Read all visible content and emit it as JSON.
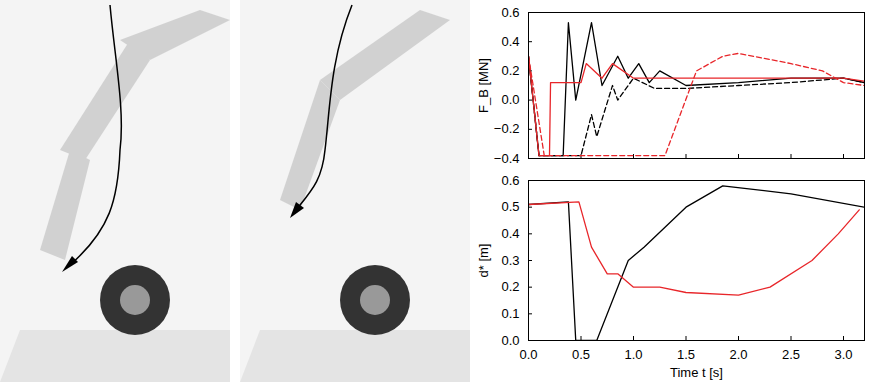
{
  "chart_data": [
    {
      "type": "line",
      "ylabel": "F_B [MN]",
      "xlim": [
        0,
        3.2
      ],
      "xticks": [
        0,
        0.5,
        1,
        1.5,
        2,
        2.5,
        3
      ],
      "ylim": [
        -0.4,
        0.6
      ],
      "yticks": [
        {
          "value": -0.4,
          "label": "−0.4"
        },
        {
          "value": -0.2,
          "label": "−0.2"
        },
        {
          "value": 0,
          "label": "0.0"
        },
        0.2,
        0.4,
        0.6
      ],
      "tick_labels": "y",
      "grid": false,
      "series": [
        {
          "color": "#000000",
          "line_style": "solid",
          "x": [
            0,
            0.1,
            0.33,
            0.38,
            0.45,
            0.6,
            0.7,
            0.85,
            0.95,
            1.05,
            1.15,
            1.25,
            1.5,
            2.0,
            2.5,
            3.0,
            3.2
          ],
          "values": [
            0.3,
            -0.38,
            -0.38,
            0.53,
            0.0,
            0.53,
            0.1,
            0.3,
            0.15,
            0.25,
            0.12,
            0.2,
            0.1,
            0.12,
            0.15,
            0.15,
            0.12
          ]
        },
        {
          "color": "#000000",
          "line_style": "dashed",
          "x": [
            0,
            0.1,
            0.5,
            0.6,
            0.65,
            0.8,
            0.85,
            1.0,
            1.2,
            1.5,
            2.0,
            2.5,
            3.0,
            3.2
          ],
          "values": [
            0.3,
            -0.38,
            -0.38,
            -0.1,
            -0.25,
            0.1,
            0.0,
            0.15,
            0.08,
            0.08,
            0.1,
            0.12,
            0.15,
            0.12
          ]
        },
        {
          "color": "#e8262a",
          "line_style": "solid",
          "x": [
            0,
            0.1,
            0.2,
            0.21,
            0.5,
            0.55,
            0.7,
            0.8,
            1.0,
            1.5,
            2.0,
            2.5,
            3.0,
            3.2
          ],
          "values": [
            0.3,
            -0.38,
            -0.38,
            0.12,
            0.12,
            0.25,
            0.15,
            0.25,
            0.15,
            0.15,
            0.15,
            0.15,
            0.15,
            0.13
          ]
        },
        {
          "color": "#e8262a",
          "line_style": "dashed",
          "x": [
            0,
            0.15,
            1.3,
            1.6,
            1.85,
            2.0,
            2.5,
            2.8,
            3.0,
            3.2
          ],
          "values": [
            0.3,
            -0.38,
            -0.38,
            0.2,
            0.3,
            0.32,
            0.25,
            0.2,
            0.12,
            0.1
          ]
        }
      ]
    },
    {
      "type": "line",
      "xlabel": "Time t [s]",
      "ylabel": "d* [m]",
      "xlim": [
        0,
        3.2
      ],
      "xticks": [
        {
          "value": 0,
          "label": "0.0"
        },
        0.5,
        {
          "value": 1,
          "label": "1.0"
        },
        1.5,
        {
          "value": 2,
          "label": "2.0"
        },
        2.5,
        {
          "value": 3,
          "label": "3.0"
        }
      ],
      "ylim": [
        0,
        0.6
      ],
      "yticks": [
        {
          "value": 0,
          "label": "0.0"
        },
        0.1,
        0.2,
        0.3,
        0.4,
        0.5,
        0.6
      ],
      "grid": false,
      "series": [
        {
          "color": "#000000",
          "line_style": "solid",
          "x": [
            0,
            0.38,
            0.45,
            0.65,
            0.95,
            1.1,
            1.5,
            1.85,
            2.5,
            3.2
          ],
          "values": [
            0.51,
            0.52,
            0.0,
            0.0,
            0.3,
            0.35,
            0.5,
            0.58,
            0.55,
            0.5
          ]
        },
        {
          "color": "#e8262a",
          "line_style": "solid",
          "x": [
            0,
            0.48,
            0.6,
            0.75,
            0.85,
            1.0,
            1.25,
            1.5,
            2.0,
            2.3,
            2.7,
            2.95,
            3.15
          ],
          "values": [
            0.51,
            0.52,
            0.35,
            0.25,
            0.25,
            0.2,
            0.2,
            0.18,
            0.17,
            0.2,
            0.3,
            0.4,
            0.49
          ]
        }
      ]
    }
  ]
}
